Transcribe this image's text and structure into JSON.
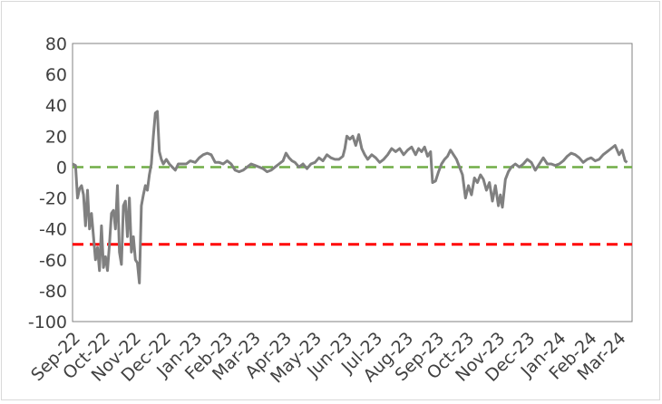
{
  "chart_data": {
    "type": "line",
    "title": "",
    "xlabel": "",
    "ylabel": "",
    "ylim": [
      -100,
      80
    ],
    "yticks": [
      80,
      60,
      40,
      20,
      0,
      -20,
      -40,
      -60,
      -80,
      -100
    ],
    "xlim": [
      "2022-09-01",
      "2024-03-15"
    ],
    "x_tick_labels": [
      "Sep-22",
      "Oct-22",
      "Nov-22",
      "Dec-22",
      "Jan-23",
      "Feb-23",
      "Mar-23",
      "Apr-23",
      "May-23",
      "Jun-23",
      "Jul-23",
      "Aug-23",
      "Sep-23",
      "Oct-23",
      "Nov-23",
      "Dec-23",
      "Jan-24",
      "Feb-24",
      "Mar-24"
    ],
    "x_tick_dates": [
      "2022-09-01",
      "2022-10-01",
      "2022-11-01",
      "2022-12-01",
      "2023-01-01",
      "2023-02-01",
      "2023-03-01",
      "2023-04-01",
      "2023-05-01",
      "2023-06-01",
      "2023-07-01",
      "2023-08-01",
      "2023-09-01",
      "2023-10-01",
      "2023-11-01",
      "2023-12-01",
      "2024-01-01",
      "2024-02-01",
      "2024-03-01"
    ],
    "grid": false,
    "legend": "none",
    "reference_lines": [
      {
        "y": 0,
        "color": "#70ad47",
        "style": "dashed"
      },
      {
        "y": -50,
        "color": "#ff0000",
        "style": "dashed"
      }
    ],
    "series": [
      {
        "color": "#808080",
        "points": [
          [
            "2022-09-01",
            2
          ],
          [
            "2022-09-04",
            1
          ],
          [
            "2022-09-06",
            -20
          ],
          [
            "2022-09-08",
            -14
          ],
          [
            "2022-09-10",
            -12
          ],
          [
            "2022-09-12",
            -18
          ],
          [
            "2022-09-14",
            -38
          ],
          [
            "2022-09-16",
            -15
          ],
          [
            "2022-09-18",
            -40
          ],
          [
            "2022-09-20",
            -30
          ],
          [
            "2022-09-22",
            -45
          ],
          [
            "2022-09-24",
            -60
          ],
          [
            "2022-09-26",
            -52
          ],
          [
            "2022-09-28",
            -67
          ],
          [
            "2022-09-30",
            -38
          ],
          [
            "2022-10-02",
            -65
          ],
          [
            "2022-10-04",
            -58
          ],
          [
            "2022-10-06",
            -67
          ],
          [
            "2022-10-08",
            -50
          ],
          [
            "2022-10-10",
            -30
          ],
          [
            "2022-10-12",
            -28
          ],
          [
            "2022-10-14",
            -40
          ],
          [
            "2022-10-16",
            -12
          ],
          [
            "2022-10-18",
            -55
          ],
          [
            "2022-10-20",
            -63
          ],
          [
            "2022-10-22",
            -25
          ],
          [
            "2022-10-24",
            -22
          ],
          [
            "2022-10-26",
            -45
          ],
          [
            "2022-10-28",
            -20
          ],
          [
            "2022-10-30",
            -55
          ],
          [
            "2022-11-01",
            -45
          ],
          [
            "2022-11-03",
            -60
          ],
          [
            "2022-11-05",
            -62
          ],
          [
            "2022-11-07",
            -75
          ],
          [
            "2022-11-09",
            -25
          ],
          [
            "2022-11-11",
            -18
          ],
          [
            "2022-11-13",
            -12
          ],
          [
            "2022-11-15",
            -15
          ],
          [
            "2022-11-17",
            -5
          ],
          [
            "2022-11-19",
            2
          ],
          [
            "2022-11-21",
            20
          ],
          [
            "2022-11-23",
            35
          ],
          [
            "2022-11-25",
            36
          ],
          [
            "2022-11-27",
            10
          ],
          [
            "2022-11-29",
            5
          ],
          [
            "2022-12-01",
            2
          ],
          [
            "2022-12-04",
            5
          ],
          [
            "2022-12-07",
            2
          ],
          [
            "2022-12-10",
            0
          ],
          [
            "2022-12-13",
            -2
          ],
          [
            "2022-12-16",
            2
          ],
          [
            "2022-12-20",
            2
          ],
          [
            "2022-12-24",
            2
          ],
          [
            "2022-12-28",
            4
          ],
          [
            "2023-01-02",
            3
          ],
          [
            "2023-01-06",
            6
          ],
          [
            "2023-01-10",
            8
          ],
          [
            "2023-01-14",
            9
          ],
          [
            "2023-01-18",
            8
          ],
          [
            "2023-01-22",
            3
          ],
          [
            "2023-01-26",
            3
          ],
          [
            "2023-01-30",
            2
          ],
          [
            "2023-02-03",
            4
          ],
          [
            "2023-02-07",
            2
          ],
          [
            "2023-02-11",
            -2
          ],
          [
            "2023-02-15",
            -3
          ],
          [
            "2023-02-19",
            -2
          ],
          [
            "2023-02-23",
            0
          ],
          [
            "2023-02-27",
            2
          ],
          [
            "2023-03-03",
            1
          ],
          [
            "2023-03-07",
            0
          ],
          [
            "2023-03-11",
            -1
          ],
          [
            "2023-03-15",
            -3
          ],
          [
            "2023-03-19",
            -2
          ],
          [
            "2023-03-23",
            0
          ],
          [
            "2023-03-27",
            2
          ],
          [
            "2023-03-31",
            4
          ],
          [
            "2023-04-03",
            9
          ],
          [
            "2023-04-06",
            6
          ],
          [
            "2023-04-09",
            4
          ],
          [
            "2023-04-12",
            3
          ],
          [
            "2023-04-16",
            0
          ],
          [
            "2023-04-20",
            2
          ],
          [
            "2023-04-24",
            -1
          ],
          [
            "2023-04-28",
            2
          ],
          [
            "2023-05-02",
            3
          ],
          [
            "2023-05-06",
            6
          ],
          [
            "2023-05-10",
            4
          ],
          [
            "2023-05-14",
            8
          ],
          [
            "2023-05-18",
            6
          ],
          [
            "2023-05-22",
            5
          ],
          [
            "2023-05-26",
            5
          ],
          [
            "2023-05-30",
            7
          ],
          [
            "2023-06-01",
            12
          ],
          [
            "2023-06-03",
            20
          ],
          [
            "2023-06-06",
            18
          ],
          [
            "2023-06-09",
            20
          ],
          [
            "2023-06-12",
            14
          ],
          [
            "2023-06-15",
            21
          ],
          [
            "2023-06-18",
            12
          ],
          [
            "2023-06-21",
            8
          ],
          [
            "2023-06-24",
            5
          ],
          [
            "2023-06-28",
            8
          ],
          [
            "2023-07-02",
            6
          ],
          [
            "2023-07-06",
            3
          ],
          [
            "2023-07-10",
            5
          ],
          [
            "2023-07-14",
            8
          ],
          [
            "2023-07-18",
            12
          ],
          [
            "2023-07-22",
            10
          ],
          [
            "2023-07-26",
            12
          ],
          [
            "2023-07-30",
            8
          ],
          [
            "2023-08-03",
            11
          ],
          [
            "2023-08-07",
            13
          ],
          [
            "2023-08-11",
            8
          ],
          [
            "2023-08-14",
            12
          ],
          [
            "2023-08-17",
            10
          ],
          [
            "2023-08-20",
            13
          ],
          [
            "2023-08-23",
            7
          ],
          [
            "2023-08-26",
            10
          ],
          [
            "2023-08-28",
            -10
          ],
          [
            "2023-08-31",
            -9
          ],
          [
            "2023-09-03",
            -3
          ],
          [
            "2023-09-06",
            2
          ],
          [
            "2023-09-09",
            5
          ],
          [
            "2023-09-12",
            7
          ],
          [
            "2023-09-15",
            11
          ],
          [
            "2023-09-18",
            8
          ],
          [
            "2023-09-21",
            5
          ],
          [
            "2023-09-24",
            0
          ],
          [
            "2023-09-27",
            -5
          ],
          [
            "2023-09-30",
            -20
          ],
          [
            "2023-10-03",
            -12
          ],
          [
            "2023-10-06",
            -18
          ],
          [
            "2023-10-09",
            -7
          ],
          [
            "2023-10-12",
            -10
          ],
          [
            "2023-10-15",
            -5
          ],
          [
            "2023-10-18",
            -8
          ],
          [
            "2023-10-21",
            -15
          ],
          [
            "2023-10-24",
            -10
          ],
          [
            "2023-10-27",
            -22
          ],
          [
            "2023-10-30",
            -12
          ],
          [
            "2023-11-02",
            -25
          ],
          [
            "2023-11-04",
            -18
          ],
          [
            "2023-11-06",
            -26
          ],
          [
            "2023-11-09",
            -8
          ],
          [
            "2023-11-12",
            -3
          ],
          [
            "2023-11-15",
            0
          ],
          [
            "2023-11-19",
            2
          ],
          [
            "2023-11-23",
            0
          ],
          [
            "2023-11-27",
            2
          ],
          [
            "2023-12-01",
            5
          ],
          [
            "2023-12-05",
            3
          ],
          [
            "2023-12-09",
            -2
          ],
          [
            "2023-12-13",
            2
          ],
          [
            "2023-12-17",
            6
          ],
          [
            "2023-12-21",
            2
          ],
          [
            "2023-12-25",
            2
          ],
          [
            "2023-12-29",
            1
          ],
          [
            "2024-01-02",
            2
          ],
          [
            "2024-01-06",
            4
          ],
          [
            "2024-01-10",
            7
          ],
          [
            "2024-01-14",
            9
          ],
          [
            "2024-01-18",
            8
          ],
          [
            "2024-01-22",
            6
          ],
          [
            "2024-01-26",
            3
          ],
          [
            "2024-01-30",
            5
          ],
          [
            "2024-02-03",
            6
          ],
          [
            "2024-02-07",
            4
          ],
          [
            "2024-02-11",
            5
          ],
          [
            "2024-02-15",
            8
          ],
          [
            "2024-02-19",
            10
          ],
          [
            "2024-02-23",
            12
          ],
          [
            "2024-02-27",
            14
          ],
          [
            "2024-03-02",
            8
          ],
          [
            "2024-03-05",
            11
          ],
          [
            "2024-03-08",
            4
          ],
          [
            "2024-03-10",
            3
          ]
        ]
      }
    ]
  }
}
